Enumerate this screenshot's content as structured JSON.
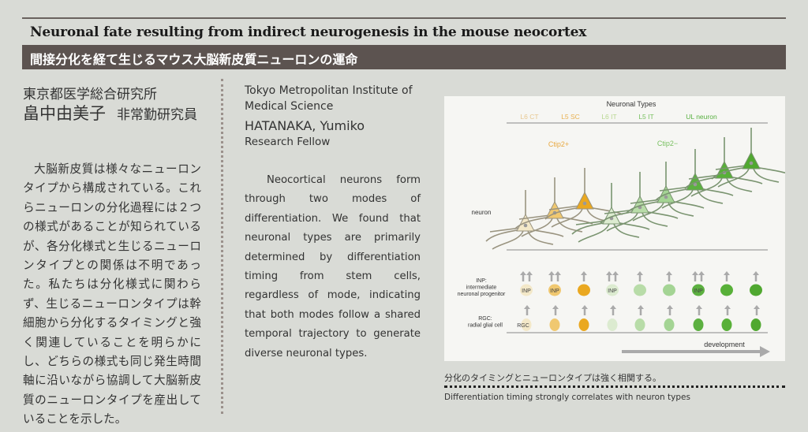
{
  "header": {
    "title_en": "Neuronal fate resulting from indirect neurogenesis in the mouse neocortex",
    "title_jp": "間接分化を経て生じるマウス大脳新皮質ニューロンの運命"
  },
  "author_jp": {
    "org": "東京都医学総合研究所",
    "name": "畠中由美子",
    "role": "非常勤研究員"
  },
  "body_jp": "大脳新皮質は様々なニューロンタイプから構成されている。これらニューロンの分化過程には２つの様式があることが知られているが、各分化様式と生じるニューロンタイプとの関係は不明であった。私たちは分化様式に関わらず、生じるニューロンタイプは幹細胞から分化するタイミングと強く関連していることを明らかにし、どちらの様式も同じ発生時間軸に沿いながら協調して大脳新皮質のニューロンタイプを産出していることを示した。",
  "author_en": {
    "org": "Tokyo Metropolitan Institute of Medical Science",
    "name": "HATANAKA, Yumiko",
    "role": "Research Fellow"
  },
  "body_en": "Neocortical neurons form through two modes of differentiation. We found that neuronal types are primarily determined by differentiation timing from stem cells, regardless of mode, indicating that both modes follow a shared temporal trajectory to generate diverse neuronal types.",
  "figure": {
    "heading": "Neuronal Types",
    "types": [
      {
        "label": "L6 CT",
        "color": "#e8c890"
      },
      {
        "label": "L5 SC",
        "color": "#e8b050"
      },
      {
        "label": "L6 IT",
        "color": "#b8d890"
      },
      {
        "label": "L5 IT",
        "color": "#78c060"
      },
      {
        "label": "UL  neuron",
        "color": "#58b040"
      }
    ],
    "ctip_pos": "Ctip2+",
    "ctip_neg": "Ctip2−",
    "ctip_pos_color": "#e8a840",
    "ctip_neg_color": "#78c060",
    "row_neuron": "neuron",
    "row_inp": [
      "INP:",
      "intermediate",
      "neuronal progenitor"
    ],
    "row_rgc": [
      "RGC:",
      "radial glial cell"
    ],
    "inp_label": "INP",
    "rgc_label": "RGC",
    "development": "development",
    "cell_colors": [
      "#f3e8c8",
      "#f0c870",
      "#eaa820",
      "#dcebd0",
      "#b8dca8",
      "#a4d494",
      "#5cb040",
      "#58b038",
      "#50a830"
    ],
    "inp_labeled": [
      true,
      true,
      false,
      true,
      false,
      false,
      true,
      false,
      false
    ],
    "inp_double_arrow": [
      true,
      true,
      false,
      true,
      false,
      false,
      true,
      false,
      false
    ]
  },
  "caption": {
    "jp": "分化のタイミングとニューロンタイプは強く相関する。",
    "en": "Differentiation timing strongly correlates with neuron types"
  }
}
